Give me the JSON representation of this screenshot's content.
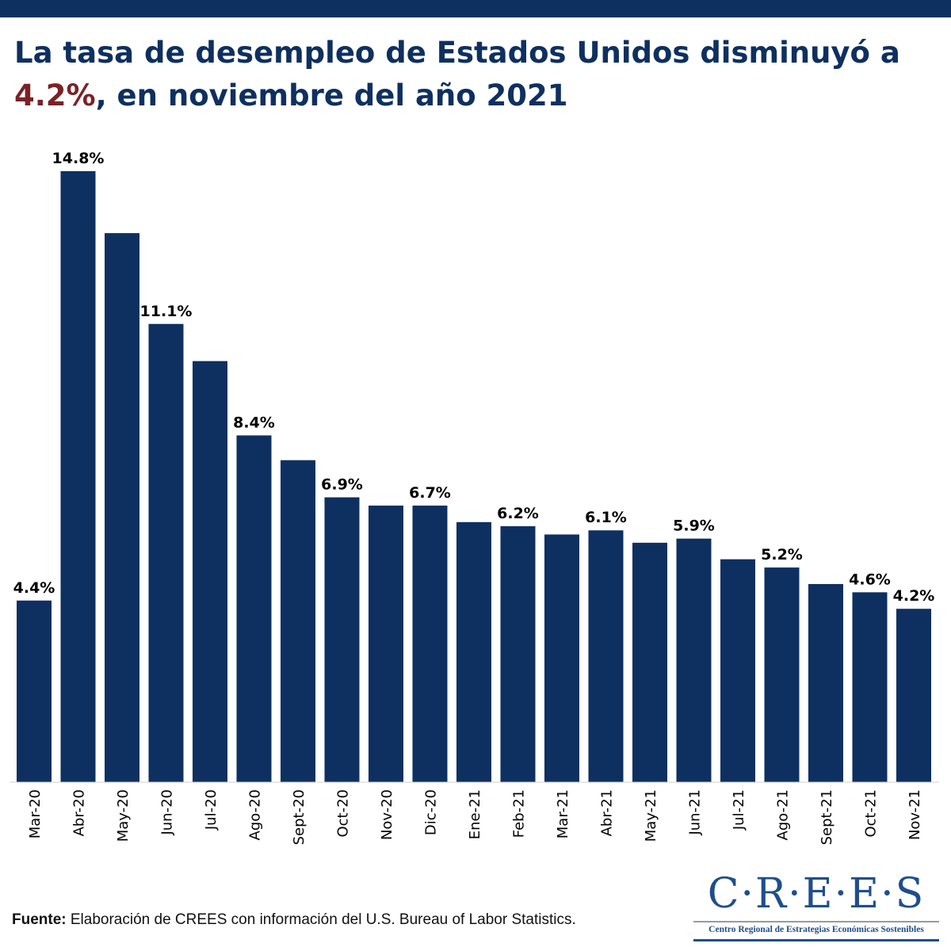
{
  "header": {
    "title_part1": "La tasa de desempleo de Estados Unidos disminuyó a ",
    "title_highlight": "4.2%",
    "title_part2": ", en noviembre del año 2021"
  },
  "colors": {
    "bar": "#0e3060",
    "highlight": "#7b2226",
    "text": "#000000"
  },
  "chart_data": {
    "type": "bar",
    "title": "La tasa de desempleo de Estados Unidos disminuyó a 4.2%, en noviembre del año 2021",
    "xlabel": "",
    "ylabel": "",
    "ylim": [
      0,
      15
    ],
    "grid": false,
    "categories": [
      "Mar-20",
      "Abr-20",
      "May-20",
      "Jun-20",
      "Jul-20",
      "Ago-20",
      "Sept-20",
      "Oct-20",
      "Nov-20",
      "Dic-20",
      "Ene-21",
      "Feb-21",
      "Mar-21",
      "Abr-21",
      "May-21",
      "Jun-21",
      "Jul-21",
      "Ago-21",
      "Sept-21",
      "Oct-21",
      "Nov-21"
    ],
    "values": [
      4.4,
      14.8,
      13.3,
      11.1,
      10.2,
      8.4,
      7.8,
      6.9,
      6.7,
      6.7,
      6.3,
      6.2,
      6.0,
      6.1,
      5.8,
      5.9,
      5.4,
      5.2,
      4.8,
      4.6,
      4.2
    ],
    "data_labels": [
      "4.4%",
      "14.8%",
      "",
      "11.1%",
      "",
      "8.4%",
      "",
      "6.9%",
      "",
      "6.7%",
      "",
      "6.2%",
      "",
      "6.1%",
      "",
      "5.9%",
      "",
      "5.2%",
      "",
      "4.6%",
      "4.2%"
    ]
  },
  "footer": {
    "source_label": "Fuente:",
    "source_text": " Elaboración de CREES con información del U.S. Bureau of Labor Statistics."
  },
  "logo": {
    "name": "C·R·E·E·S",
    "subtitle": "Centro Regional de Estrategias Económicas Sostenibles"
  }
}
